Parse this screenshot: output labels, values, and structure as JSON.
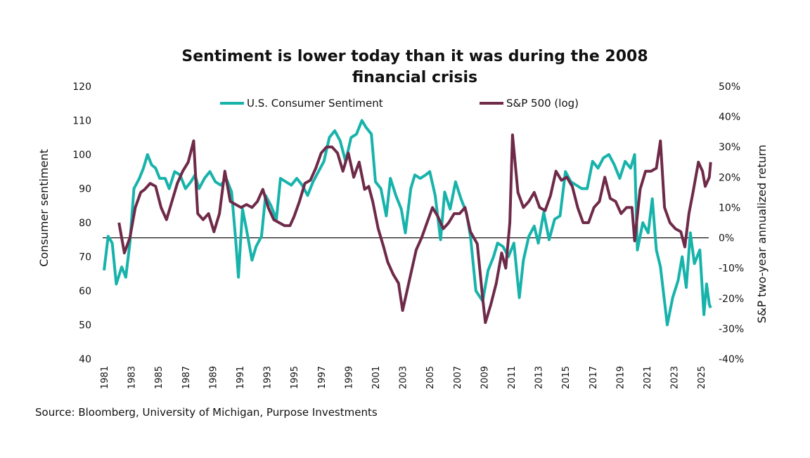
{
  "chart_data": {
    "type": "line",
    "title": "Sentiment is lower today than it was during the 2008 financial crisis",
    "source": "Source: Bloomberg, University of Michigan, Purpose Investments",
    "ylabel_left": "Consumer sentiment",
    "ylabel_right": "S&P two-year annualized return",
    "ylim_left": [
      40,
      120
    ],
    "ylim_right": [
      -40,
      50
    ],
    "yticks_left": [
      "120",
      "110",
      "100",
      "90",
      "80",
      "70",
      "60",
      "50",
      "40"
    ],
    "yticks_right": [
      "50%",
      "40%",
      "30%",
      "20%",
      "10%",
      "0%",
      "-10%",
      "-20%",
      "-30%",
      "-40%"
    ],
    "xticks": [
      "1981",
      "1983",
      "1985",
      "1987",
      "1989",
      "1991",
      "1993",
      "1995",
      "1997",
      "1999",
      "2001",
      "2003",
      "2005",
      "2007",
      "2009",
      "2011",
      "2013",
      "2015",
      "2017",
      "2019",
      "2021",
      "2023",
      "2025"
    ],
    "legend_placement": "top",
    "reference_line": {
      "axis": "right",
      "value": 0
    },
    "series": [
      {
        "name": "U.S. Consumer Sentiment",
        "axis": "left",
        "color": "#17B3AB",
        "points": [
          [
            1981.0,
            66
          ],
          [
            1981.3,
            76
          ],
          [
            1981.6,
            74
          ],
          [
            1981.9,
            62
          ],
          [
            1982.3,
            67
          ],
          [
            1982.6,
            64
          ],
          [
            1982.9,
            74
          ],
          [
            1983.2,
            90
          ],
          [
            1983.6,
            93
          ],
          [
            1983.9,
            96
          ],
          [
            1984.2,
            100
          ],
          [
            1984.5,
            97
          ],
          [
            1984.8,
            96
          ],
          [
            1985.1,
            93
          ],
          [
            1985.5,
            93
          ],
          [
            1985.8,
            90
          ],
          [
            1986.2,
            95
          ],
          [
            1986.6,
            94
          ],
          [
            1987.0,
            90
          ],
          [
            1987.4,
            92
          ],
          [
            1987.7,
            94
          ],
          [
            1988.0,
            90
          ],
          [
            1988.4,
            93
          ],
          [
            1988.8,
            95
          ],
          [
            1989.2,
            92
          ],
          [
            1989.6,
            91
          ],
          [
            1990.0,
            93
          ],
          [
            1990.4,
            89
          ],
          [
            1990.7,
            75
          ],
          [
            1990.9,
            64
          ],
          [
            1991.2,
            84
          ],
          [
            1991.5,
            78
          ],
          [
            1991.9,
            69
          ],
          [
            1992.2,
            73
          ],
          [
            1992.6,
            76
          ],
          [
            1992.9,
            88
          ],
          [
            1993.3,
            85
          ],
          [
            1993.7,
            81
          ],
          [
            1994.0,
            93
          ],
          [
            1994.4,
            92
          ],
          [
            1994.8,
            91
          ],
          [
            1995.2,
            93
          ],
          [
            1995.6,
            91
          ],
          [
            1996.0,
            88
          ],
          [
            1996.4,
            92
          ],
          [
            1996.8,
            95
          ],
          [
            1997.2,
            98
          ],
          [
            1997.6,
            105
          ],
          [
            1998.0,
            107
          ],
          [
            1998.4,
            104
          ],
          [
            1998.8,
            98
          ],
          [
            1999.2,
            105
          ],
          [
            1999.6,
            106
          ],
          [
            2000.0,
            110
          ],
          [
            2000.3,
            108
          ],
          [
            2000.7,
            106
          ],
          [
            2001.0,
            92
          ],
          [
            2001.4,
            90
          ],
          [
            2001.8,
            82
          ],
          [
            2002.1,
            93
          ],
          [
            2002.5,
            88
          ],
          [
            2002.9,
            84
          ],
          [
            2003.2,
            77
          ],
          [
            2003.6,
            90
          ],
          [
            2003.9,
            94
          ],
          [
            2004.3,
            93
          ],
          [
            2004.7,
            94
          ],
          [
            2005.0,
            95
          ],
          [
            2005.4,
            88
          ],
          [
            2005.8,
            75
          ],
          [
            2006.1,
            89
          ],
          [
            2006.5,
            84
          ],
          [
            2006.9,
            92
          ],
          [
            2007.3,
            87
          ],
          [
            2007.7,
            83
          ],
          [
            2008.0,
            76
          ],
          [
            2008.4,
            60
          ],
          [
            2008.9,
            57
          ],
          [
            2009.3,
            66
          ],
          [
            2009.7,
            70
          ],
          [
            2010.0,
            74
          ],
          [
            2010.4,
            73
          ],
          [
            2010.8,
            70
          ],
          [
            2011.2,
            74
          ],
          [
            2011.6,
            58
          ],
          [
            2011.9,
            69
          ],
          [
            2012.3,
            76
          ],
          [
            2012.7,
            79
          ],
          [
            2013.0,
            74
          ],
          [
            2013.4,
            83
          ],
          [
            2013.8,
            75
          ],
          [
            2014.2,
            81
          ],
          [
            2014.6,
            82
          ],
          [
            2015.0,
            95
          ],
          [
            2015.4,
            92
          ],
          [
            2015.8,
            91
          ],
          [
            2016.2,
            90
          ],
          [
            2016.6,
            90
          ],
          [
            2017.0,
            98
          ],
          [
            2017.4,
            96
          ],
          [
            2017.8,
            99
          ],
          [
            2018.2,
            100
          ],
          [
            2018.6,
            97
          ],
          [
            2019.0,
            93
          ],
          [
            2019.4,
            98
          ],
          [
            2019.8,
            96
          ],
          [
            2020.1,
            100
          ],
          [
            2020.3,
            72
          ],
          [
            2020.7,
            80
          ],
          [
            2021.1,
            77
          ],
          [
            2021.4,
            87
          ],
          [
            2021.7,
            72
          ],
          [
            2022.0,
            67
          ],
          [
            2022.5,
            50
          ],
          [
            2022.9,
            58
          ],
          [
            2023.3,
            63
          ],
          [
            2023.6,
            70
          ],
          [
            2023.9,
            61
          ],
          [
            2024.2,
            77
          ],
          [
            2024.5,
            68
          ],
          [
            2024.9,
            72
          ],
          [
            2025.2,
            53
          ],
          [
            2025.4,
            62
          ],
          [
            2025.6,
            56
          ],
          [
            2025.7,
            55
          ]
        ]
      },
      {
        "name": "S&P 500 (log)",
        "axis": "right",
        "color": "#6E2A48",
        "points": [
          [
            1982.1,
            5
          ],
          [
            1982.5,
            -5
          ],
          [
            1982.9,
            0
          ],
          [
            1983.3,
            10
          ],
          [
            1983.7,
            15
          ],
          [
            1984.0,
            16
          ],
          [
            1984.4,
            18
          ],
          [
            1984.8,
            17
          ],
          [
            1985.2,
            10
          ],
          [
            1985.6,
            6
          ],
          [
            1986.0,
            12
          ],
          [
            1986.4,
            18
          ],
          [
            1986.8,
            22
          ],
          [
            1987.2,
            25
          ],
          [
            1987.6,
            32
          ],
          [
            1987.9,
            8
          ],
          [
            1988.3,
            6
          ],
          [
            1988.7,
            8
          ],
          [
            1989.1,
            2
          ],
          [
            1989.5,
            8
          ],
          [
            1989.9,
            22
          ],
          [
            1990.3,
            12
          ],
          [
            1990.7,
            11
          ],
          [
            1991.1,
            10
          ],
          [
            1991.5,
            11
          ],
          [
            1991.9,
            10
          ],
          [
            1992.3,
            12
          ],
          [
            1992.7,
            16
          ],
          [
            1993.1,
            10
          ],
          [
            1993.5,
            6
          ],
          [
            1993.9,
            5
          ],
          [
            1994.3,
            4
          ],
          [
            1994.7,
            4
          ],
          [
            1995.0,
            7
          ],
          [
            1995.4,
            12
          ],
          [
            1995.8,
            18
          ],
          [
            1996.2,
            19
          ],
          [
            1996.6,
            23
          ],
          [
            1997.0,
            28
          ],
          [
            1997.4,
            30
          ],
          [
            1997.8,
            30
          ],
          [
            1998.2,
            28
          ],
          [
            1998.6,
            22
          ],
          [
            1999.0,
            28
          ],
          [
            1999.4,
            20
          ],
          [
            1999.8,
            25
          ],
          [
            2000.2,
            16
          ],
          [
            2000.5,
            17
          ],
          [
            2000.8,
            12
          ],
          [
            2001.2,
            3
          ],
          [
            2001.6,
            -3
          ],
          [
            2001.9,
            -8
          ],
          [
            2002.3,
            -12
          ],
          [
            2002.7,
            -15
          ],
          [
            2003.0,
            -24
          ],
          [
            2003.3,
            -18
          ],
          [
            2003.7,
            -10
          ],
          [
            2004.0,
            -4
          ],
          [
            2004.4,
            0
          ],
          [
            2004.8,
            5
          ],
          [
            2005.2,
            10
          ],
          [
            2005.6,
            7
          ],
          [
            2006.0,
            3
          ],
          [
            2006.4,
            5
          ],
          [
            2006.8,
            8
          ],
          [
            2007.2,
            8
          ],
          [
            2007.6,
            10
          ],
          [
            2008.0,
            2
          ],
          [
            2008.5,
            -2
          ],
          [
            2008.9,
            -20
          ],
          [
            2009.1,
            -28
          ],
          [
            2009.5,
            -22
          ],
          [
            2009.9,
            -15
          ],
          [
            2010.3,
            -5
          ],
          [
            2010.6,
            -10
          ],
          [
            2010.9,
            5
          ],
          [
            2011.1,
            34
          ],
          [
            2011.5,
            15
          ],
          [
            2011.9,
            10
          ],
          [
            2012.3,
            12
          ],
          [
            2012.7,
            15
          ],
          [
            2013.1,
            10
          ],
          [
            2013.5,
            9
          ],
          [
            2013.9,
            14
          ],
          [
            2014.3,
            22
          ],
          [
            2014.7,
            19
          ],
          [
            2015.1,
            20
          ],
          [
            2015.5,
            17
          ],
          [
            2015.9,
            10
          ],
          [
            2016.3,
            5
          ],
          [
            2016.7,
            5
          ],
          [
            2017.1,
            10
          ],
          [
            2017.5,
            12
          ],
          [
            2017.9,
            20
          ],
          [
            2018.3,
            13
          ],
          [
            2018.7,
            12
          ],
          [
            2019.1,
            8
          ],
          [
            2019.5,
            10
          ],
          [
            2019.9,
            10
          ],
          [
            2020.1,
            -1
          ],
          [
            2020.5,
            16
          ],
          [
            2020.9,
            22
          ],
          [
            2021.3,
            22
          ],
          [
            2021.7,
            23
          ],
          [
            2022.0,
            32
          ],
          [
            2022.3,
            10
          ],
          [
            2022.7,
            5
          ],
          [
            2023.1,
            3
          ],
          [
            2023.5,
            2
          ],
          [
            2023.8,
            -3
          ],
          [
            2024.1,
            8
          ],
          [
            2024.4,
            15
          ],
          [
            2024.8,
            25
          ],
          [
            2025.1,
            22
          ],
          [
            2025.3,
            17
          ],
          [
            2025.6,
            20
          ],
          [
            2025.7,
            25
          ]
        ]
      }
    ]
  }
}
